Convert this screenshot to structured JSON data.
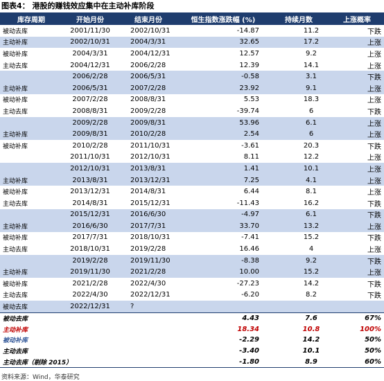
{
  "title": "图表4：  港股的赚钱效应集中在主动补库阶段",
  "table": {
    "header": [
      "库存周期",
      "开始月份",
      "结束月份",
      "恒生指数涨跌幅 (%)",
      "持续月数",
      "上涨概率"
    ],
    "rows": [
      [
        "被动去库",
        "2001/11/30",
        "2002/10/31",
        "-14.87",
        "11.2",
        "下跌"
      ],
      [
        "主动补库",
        "2002/10/31",
        "2004/3/31",
        "32.65",
        "17.2",
        "上涨"
      ],
      [
        "被动补库",
        "2004/3/31",
        "2004/12/31",
        "12.57",
        "9.2",
        "上涨"
      ],
      [
        "主动去库",
        "2004/12/31",
        "2006/2/28",
        "12.39",
        "14.1",
        "上涨"
      ],
      [
        null,
        "2006/2/28",
        "2006/5/31",
        "-0.58",
        "3.1",
        "下跌"
      ],
      [
        "主动补库",
        "2006/5/31",
        "2007/2/28",
        "23.92",
        "9.1",
        "上涨"
      ],
      [
        "被动补库",
        "2007/2/28",
        "2008/8/31",
        "5.53",
        "18.3",
        "上涨"
      ],
      [
        "主动去库",
        "2008/8/31",
        "2009/2/28",
        "-39.74",
        "6",
        "下跌"
      ],
      [
        null,
        "2009/2/28",
        "2009/8/31",
        "53.96",
        "6.1",
        "上涨"
      ],
      [
        "主动补库",
        "2009/8/31",
        "2010/2/28",
        "2.54",
        "6",
        "上涨"
      ],
      [
        "被动补库",
        "2010/2/28",
        "2011/10/31",
        "-3.61",
        "20.3",
        "下跌"
      ],
      [
        null,
        "2011/10/31",
        "2012/10/31",
        "8.11",
        "12.2",
        "上涨"
      ],
      [
        null,
        "2012/10/31",
        "2013/8/31",
        "1.41",
        "10.1",
        "上涨"
      ],
      [
        "主动补库",
        "2013/8/31",
        "2013/12/31",
        "7.25",
        "4.1",
        "上涨"
      ],
      [
        "被动补库",
        "2013/12/31",
        "2014/8/31",
        "6.44",
        "8.1",
        "上涨"
      ],
      [
        "主动去库",
        "2014/8/31",
        "2015/12/31",
        "-11.43",
        "16.2",
        "下跌"
      ],
      [
        null,
        "2015/12/31",
        "2016/6/30",
        "-4.97",
        "6.1",
        "下跌"
      ],
      [
        "主动补库",
        "2016/6/30",
        "2017/7/31",
        "33.70",
        "13.2",
        "上涨"
      ],
      [
        "被动补库",
        "2017/7/31",
        "2018/10/31",
        "-7.41",
        "15.2",
        "下跌"
      ],
      [
        "主动去库",
        "2018/10/31",
        "2019/2/28",
        "16.46",
        "4",
        "上涨"
      ],
      [
        null,
        "2019/2/28",
        "2019/11/30",
        "-8.38",
        "9.2",
        "下跌"
      ],
      [
        "主动补库",
        "2019/11/30",
        "2021/2/28",
        "10.00",
        "15.2",
        "上涨"
      ],
      [
        "被动补库",
        "2021/2/28",
        "2022/4/30",
        "-27.23",
        "14.2",
        "下跌"
      ],
      [
        "主动去库",
        "2022/4/30",
        "2022/12/31",
        "-6.20",
        "8.2",
        "下跌"
      ],
      [
        "被动去库",
        "2022/12/31",
        "?",
        null,
        null,
        null
      ]
    ],
    "summary": [
      [
        "被动去库",
        "4.43",
        "7.6",
        "67%"
      ],
      [
        "主动补库",
        "18.34",
        "10.8",
        "100%"
      ],
      [
        "被动补库",
        "-2.29",
        "14.2",
        "50%"
      ],
      [
        "主动去库",
        "-3.40",
        "10.1",
        "50%"
      ],
      [
        "主动去库（剔除 2015）",
        "-1.80",
        "8.9",
        "60%"
      ]
    ]
  },
  "source": "资料来源：Wind，华泰研究"
}
